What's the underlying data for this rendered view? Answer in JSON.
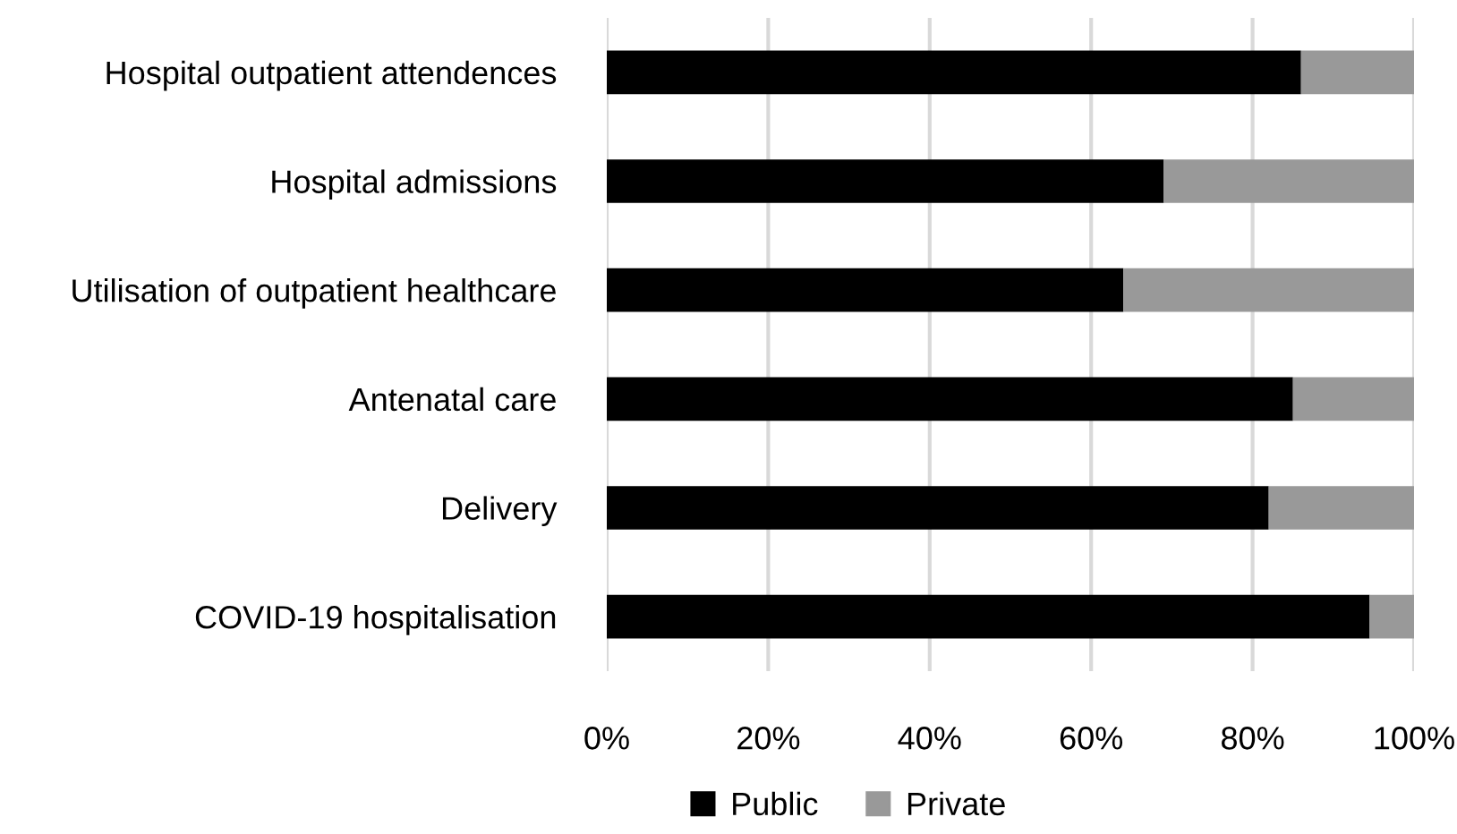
{
  "chart_data": {
    "type": "bar",
    "orientation": "horizontal",
    "stacked": true,
    "categories": [
      "Hospital outpatient attendences",
      "Hospital admissions",
      "Utilisation of outpatient healthcare",
      "Antenatal care",
      "Delivery",
      "COVID-19 hospitalisation"
    ],
    "series": [
      {
        "name": "Public",
        "color": "#000000",
        "values": [
          86,
          69,
          64,
          85,
          82,
          94.5
        ]
      },
      {
        "name": "Private",
        "color": "#999999",
        "values": [
          14,
          31,
          36,
          15,
          18,
          5.5
        ]
      }
    ],
    "xlim": [
      0,
      100
    ],
    "xticks": [
      {
        "value": 0,
        "label": "0%"
      },
      {
        "value": 20,
        "label": "20%"
      },
      {
        "value": 40,
        "label": "40%"
      },
      {
        "value": 60,
        "label": "60%"
      },
      {
        "value": 80,
        "label": "80%"
      },
      {
        "value": 100,
        "label": "100%"
      }
    ],
    "grid": "x",
    "legend": "bottom"
  }
}
